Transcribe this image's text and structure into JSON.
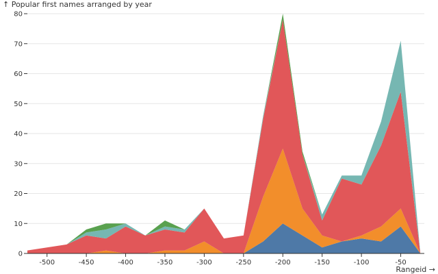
{
  "chart_data": {
    "type": "area",
    "stacked": true,
    "ylabel": "↑ Popular first names arranged by year",
    "xlabel": "Rangeid →",
    "x": [
      -525,
      -500,
      -475,
      -450,
      -425,
      -400,
      -375,
      -350,
      -325,
      -300,
      -275,
      -250,
      -225,
      -200,
      -175,
      -150,
      -125,
      -100,
      -75,
      -50,
      -25
    ],
    "x_ticks": [
      -500,
      -450,
      -400,
      -350,
      -300,
      -250,
      -200,
      -150,
      -100,
      -50
    ],
    "x_tick_labels": [
      "-500",
      "-450",
      "-400",
      "-350",
      "-300",
      "-250",
      "-200",
      "-150",
      "-100",
      "-50"
    ],
    "xlim": [
      -525,
      -20
    ],
    "y_ticks": [
      0,
      10,
      20,
      30,
      40,
      50,
      60,
      70,
      80
    ],
    "y_tick_labels": [
      "0",
      "10",
      "20",
      "30",
      "40",
      "50",
      "60",
      "70",
      "80"
    ],
    "ylim": [
      0,
      80
    ],
    "grid": true,
    "series": [
      {
        "color": "#4e79a7",
        "values": [
          0,
          0,
          0,
          0,
          0,
          0,
          0,
          0,
          0,
          0,
          0,
          0,
          4,
          10,
          6,
          2,
          4,
          5,
          4,
          9,
          0
        ]
      },
      {
        "color": "#f28e2b",
        "values": [
          0,
          0,
          0,
          0,
          1,
          0,
          0,
          1,
          1,
          4,
          0,
          0,
          15,
          25,
          9,
          4,
          0,
          1,
          5,
          6,
          0
        ]
      },
      {
        "color": "#e15759",
        "values": [
          1,
          2,
          3,
          6,
          4,
          9,
          6,
          7,
          6,
          11,
          5,
          6,
          26,
          43,
          18,
          5,
          21,
          17,
          27,
          39,
          0
        ]
      },
      {
        "color": "#76b7b2",
        "values": [
          0,
          0,
          0,
          1,
          3,
          1,
          0,
          1,
          1,
          0,
          0,
          0,
          1,
          0,
          0,
          2,
          1,
          3,
          8,
          17,
          0
        ]
      },
      {
        "color": "#59a14f",
        "values": [
          0,
          0,
          0,
          1,
          2,
          0,
          0,
          2,
          0,
          0,
          0,
          0,
          0,
          2,
          1,
          0,
          0,
          0,
          0,
          0,
          0
        ]
      }
    ]
  }
}
